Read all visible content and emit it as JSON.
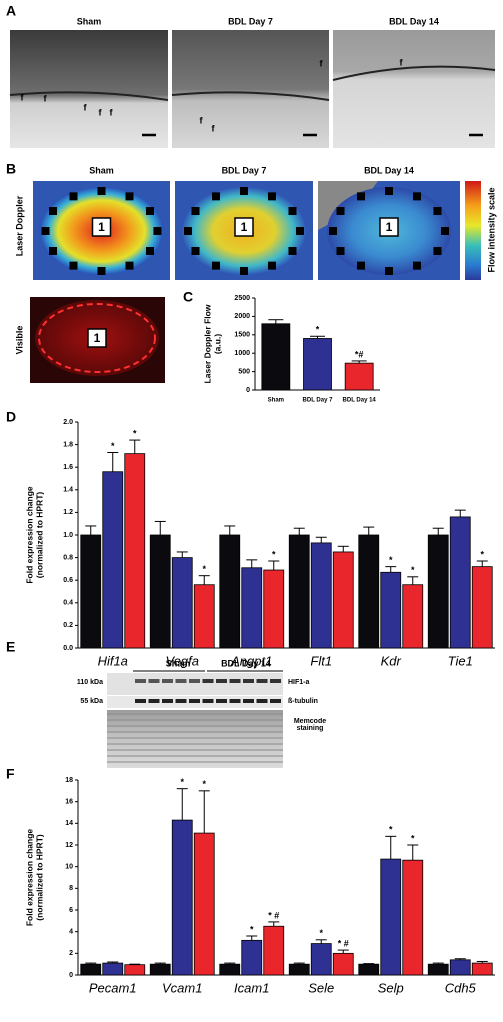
{
  "figure": {
    "a": {
      "label": "A",
      "images": [
        {
          "title": "Sham",
          "annotations": [
            "f",
            "f",
            "f",
            "f",
            "f"
          ]
        },
        {
          "title": "BDL Day 7",
          "annotations": [
            "f",
            "f",
            "f"
          ]
        },
        {
          "title": "BDL Day 14",
          "annotations": [
            "f"
          ]
        }
      ]
    },
    "b": {
      "label": "B",
      "row_label": "Laser Doppler",
      "images": [
        {
          "title": "Sham",
          "marker": "1"
        },
        {
          "title": "BDL Day 7",
          "marker": "1"
        },
        {
          "title": "BDL Day 14",
          "marker": "1"
        }
      ],
      "colorbar_label": "Flow intensity scale",
      "visible_label": "Visible",
      "visible_marker": "1"
    },
    "c_label": "C",
    "d_label": "D",
    "e": {
      "label": "E",
      "groups": [
        "Sham",
        "BDL Day 14"
      ],
      "sizes": [
        "110 kDa",
        "55 kDa"
      ],
      "rows": [
        "HIF1-a",
        "ß-tubulin",
        "Memcode staining"
      ]
    },
    "f_label": "F"
  },
  "chart_data": [
    {
      "type": "bar",
      "ylabel": [
        "Laser Doppler Flow",
        "(a.u.)"
      ],
      "categories": [
        "Sham",
        "BDL Day 7",
        "BDL Day 14"
      ],
      "ylim": [
        0,
        2500
      ],
      "yticks": [
        0,
        500,
        1000,
        1500,
        2000,
        2500
      ],
      "series": [
        {
          "colors": [
            "#0b0b0f",
            "#2e3192",
            "#e8262c"
          ],
          "values": [
            1800,
            1400,
            730
          ],
          "errors": [
            110,
            60,
            60
          ],
          "annotations": [
            null,
            "*",
            "*#"
          ]
        }
      ]
    },
    {
      "type": "bar",
      "ylabel": [
        "Fold expression change",
        "(normalized to HPRT)"
      ],
      "category_style": "italic",
      "categories": [
        "Hif1a",
        "Vegfa",
        "Angpt1",
        "Flt1",
        "Kdr",
        "Tie1"
      ],
      "ylim": [
        0,
        2.0
      ],
      "yticks": [
        {
          "value": 0,
          "label": "0.0"
        },
        0.2,
        0.4,
        0.6,
        0.8,
        {
          "value": 1,
          "label": "1.0"
        },
        1.2,
        1.4,
        1.6,
        1.8,
        {
          "value": 2,
          "label": "2.0"
        }
      ],
      "series": [
        {
          "color": "#0b0b0f",
          "values": [
            1.0,
            1.0,
            1.0,
            1.0,
            1.0,
            1.0
          ],
          "errors": [
            0.08,
            0.12,
            0.08,
            0.06,
            0.07,
            0.06
          ],
          "annotations": [
            null,
            null,
            null,
            null,
            null,
            null
          ]
        },
        {
          "color": "#2e3192",
          "values": [
            1.56,
            0.8,
            0.71,
            0.93,
            0.67,
            1.16
          ],
          "errors": [
            0.17,
            0.05,
            0.07,
            0.05,
            0.05,
            0.06
          ],
          "annotations": [
            "*",
            null,
            null,
            null,
            "*",
            null
          ]
        },
        {
          "color": "#e8262c",
          "values": [
            1.72,
            0.56,
            0.69,
            0.85,
            0.56,
            0.72
          ],
          "errors": [
            0.12,
            0.08,
            0.08,
            0.05,
            0.07,
            0.05
          ],
          "annotations": [
            "*",
            "*",
            "*",
            null,
            "*",
            "*"
          ]
        }
      ]
    },
    {
      "type": "bar",
      "ylabel": [
        "Fold expression change",
        "(normalized to HPRT)"
      ],
      "category_style": "italic",
      "categories": [
        "Pecam1",
        "Vcam1",
        "Icam1",
        "Sele",
        "Selp",
        "Cdh5"
      ],
      "ylim": [
        0,
        18
      ],
      "yticks": [
        0,
        2,
        4,
        6,
        8,
        10,
        12,
        14,
        16,
        18
      ],
      "series": [
        {
          "color": "#0b0b0f",
          "values": [
            1.0,
            1.0,
            1.0,
            1.0,
            1.0,
            1.0
          ],
          "errors": [
            0.1,
            0.1,
            0.1,
            0.1,
            0.05,
            0.1
          ],
          "annotations": [
            null,
            null,
            null,
            null,
            null,
            null
          ]
        },
        {
          "color": "#2e3192",
          "values": [
            1.1,
            14.3,
            3.2,
            2.9,
            10.7,
            1.4
          ],
          "errors": [
            0.1,
            2.9,
            0.4,
            0.35,
            2.1,
            0.1
          ],
          "annotations": [
            null,
            "*",
            "*",
            "*",
            "*",
            null
          ]
        },
        {
          "color": "#e8262c",
          "values": [
            0.95,
            13.1,
            4.5,
            2.0,
            10.6,
            1.1
          ],
          "errors": [
            0.05,
            3.9,
            0.4,
            0.3,
            1.4,
            0.15
          ],
          "annotations": [
            null,
            "*",
            "* #",
            "* #",
            "*",
            null
          ]
        }
      ]
    }
  ]
}
